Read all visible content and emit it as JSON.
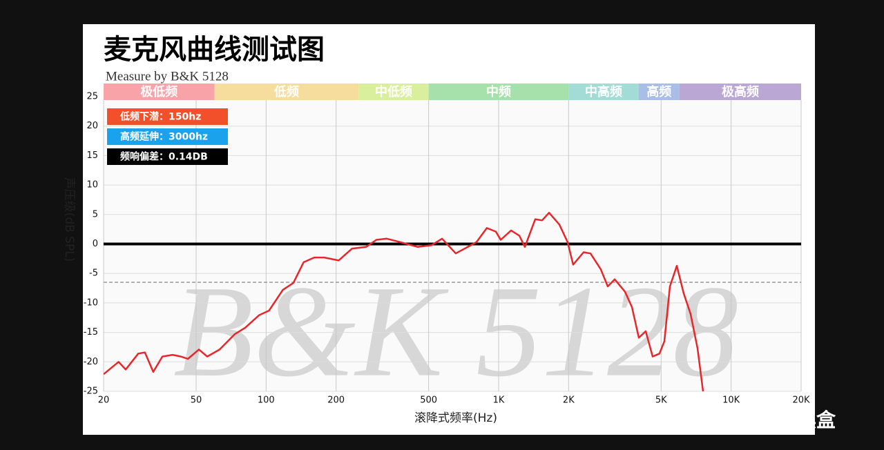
{
  "chart_data": {
    "type": "line",
    "title": "麦克风曲线测试图",
    "subtitle": "Measure by B&K 5128",
    "watermark": "B&K 5128",
    "brand": "小黑盒",
    "x_label": "滚降式频率(Hz)",
    "y_label": "声压级(dB SPL)",
    "log_x": true,
    "grid": true,
    "xlim": [
      20,
      20000
    ],
    "ylim": [
      -25,
      25
    ],
    "xticks": [
      20,
      50,
      100,
      200,
      500,
      {
        "value": 1000,
        "label": "1K"
      },
      {
        "value": 2000,
        "label": "2K"
      },
      {
        "value": 5000,
        "label": "5K"
      },
      {
        "value": 10000,
        "label": "10K"
      },
      {
        "value": 20000,
        "label": "20K"
      }
    ],
    "yticks": [
      25,
      20,
      15,
      10,
      5,
      0,
      -5,
      -10,
      -15,
      -20,
      -25
    ],
    "bands": [
      {
        "label": "极低频",
        "from": 20,
        "to": 60,
        "color": "#f7a3a8"
      },
      {
        "label": "低频",
        "from": 60,
        "to": 250,
        "color": "#f6dc9d"
      },
      {
        "label": "中低频",
        "from": 250,
        "to": 500,
        "color": "#d9ef9e"
      },
      {
        "label": "中频",
        "from": 500,
        "to": 2000,
        "color": "#a6e0aa"
      },
      {
        "label": "中高频",
        "from": 2000,
        "to": 4000,
        "color": "#a3dcd6"
      },
      {
        "label": "高频",
        "from": 4000,
        "to": 6000,
        "color": "#a9bee6"
      },
      {
        "label": "极高频",
        "from": 6000,
        "to": 20000,
        "color": "#baa7d4"
      }
    ],
    "badges": [
      {
        "label": "低频下潜：150hz",
        "color": "#f2502a"
      },
      {
        "label": "高频延伸：3000hz",
        "color": "#1aa3ec"
      },
      {
        "label": "频响偏差：0.14DB",
        "color": "#000000"
      }
    ],
    "reference_lines": [
      {
        "value": 0,
        "color": "#000000",
        "dashed": false
      },
      {
        "value": -6.5,
        "color": "#999999",
        "dashed": true
      }
    ],
    "series": [
      {
        "name": "B&K 5128",
        "color": "#e8262a",
        "x": [
          20,
          23.2,
          24.9,
          28.2,
          30.1,
          32.7,
          35.8,
          39.6,
          43.0,
          46.1,
          51.4,
          55.8,
          63.1,
          73.3,
          81.3,
          93.2,
          103,
          118,
          131,
          145,
          161,
          178,
          205,
          234,
          269,
          298,
          330,
          379,
          449,
          515,
          571,
          654,
          803,
          890,
          973,
          1021,
          1131,
          1228,
          1297,
          1437,
          1538,
          1648,
          1825,
          1981,
          2092,
          2319,
          2483,
          2751,
          2947,
          3156,
          3496,
          3744,
          4010,
          4293,
          4596,
          4920,
          5162,
          5452,
          5839,
          6253,
          6696,
          7170,
          7574
        ],
        "values": [
          -22.1,
          -20,
          -21.3,
          -18.6,
          -18.4,
          -21.7,
          -19.1,
          -18.8,
          -19.1,
          -19.5,
          -17.9,
          -19.1,
          -17.9,
          -15.3,
          -14.2,
          -12.1,
          -11.3,
          -7.8,
          -6.6,
          -3.1,
          -2.3,
          -2.3,
          -2.8,
          -0.8,
          -0.5,
          0.7,
          0.9,
          0.3,
          -0.5,
          -0.2,
          0.9,
          -1.6,
          0.3,
          2.7,
          2.1,
          0.7,
          2.3,
          1.4,
          -0.5,
          4.2,
          4.0,
          5.3,
          3.3,
          0.3,
          -3.5,
          -1.4,
          -1.6,
          -4.3,
          -7.2,
          -6.0,
          -8.1,
          -10.7,
          -15.9,
          -14.8,
          -19.1,
          -18.6,
          -16.5,
          -7.2,
          -3.7,
          -8.4,
          -11.9,
          -17.7,
          -25
        ]
      }
    ]
  }
}
